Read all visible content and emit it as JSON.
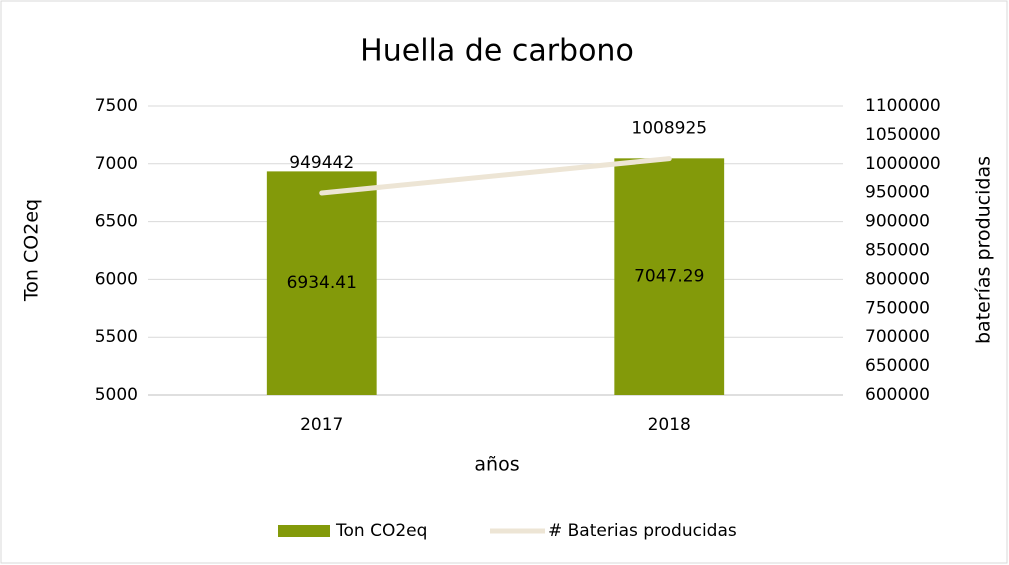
{
  "chart_data": {
    "type": "bar",
    "title": "Huella de carbono",
    "x_label": "años",
    "y_label": "Ton CO2eq",
    "y2_label": "baterías producidas",
    "categories": [
      "2017",
      "2018"
    ],
    "series": [
      {
        "name": "Ton CO2eq",
        "color": "#839a0a",
        "values": [
          6934.41,
          7047.29
        ]
      },
      {
        "name": "# Baterias producidas",
        "color": "#ede5d5",
        "type": "line",
        "axis": "y2",
        "values": [
          949442,
          1008925
        ]
      }
    ],
    "ylim": [
      5000,
      7500
    ],
    "yticks": [
      5000,
      5500,
      6000,
      6500,
      7000,
      7500
    ],
    "y2lim": [
      600000,
      1100000
    ],
    "y2ticks": [
      600000,
      650000,
      700000,
      750000,
      800000,
      850000,
      900000,
      950000,
      1000000,
      1050000,
      1100000
    ],
    "grid": true,
    "legend": "bottom"
  }
}
